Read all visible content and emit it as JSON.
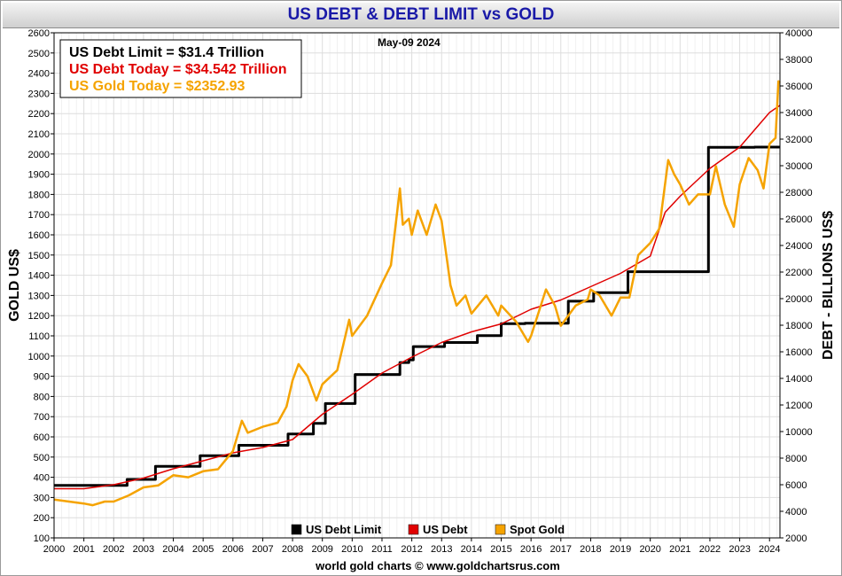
{
  "title": "US DEBT & DEBT LIMIT vs GOLD",
  "date_label": "May-09  2024",
  "info_box": [
    {
      "text": "US Debt Limit    = $31.4 Trillion",
      "color": "#000000"
    },
    {
      "text": "US Debt Today = $34.542 Trillion",
      "color": "#e00000"
    },
    {
      "text": "US Gold Today = $2352.93",
      "color": "#f5a300"
    }
  ],
  "footer": "world gold charts © www.goldchartsrus.com",
  "colors": {
    "debt_limit": "#000000",
    "us_debt": "#e00000",
    "spot_gold": "#f5a300",
    "grid": "#dddddd"
  },
  "chart_data": {
    "type": "line",
    "title": "US DEBT & DEBT LIMIT vs GOLD",
    "xlabel": "",
    "ylabel_left": "GOLD US$",
    "ylabel_right": "DEBT - BILLIONS US$",
    "xlim": [
      2000,
      2024.35
    ],
    "ylim_left": [
      100,
      2600
    ],
    "ylim_right": [
      2000,
      40000
    ],
    "x_ticks": [
      "2000",
      "2001",
      "2002",
      "2003",
      "2004",
      "2005",
      "2006",
      "2007",
      "2008",
      "2009",
      "2010",
      "2011",
      "2012",
      "2013",
      "2014",
      "2015",
      "2016",
      "2017",
      "2018",
      "2019",
      "2020",
      "2021",
      "2022",
      "2023",
      "2024"
    ],
    "y_left_ticks": [
      100,
      200,
      300,
      400,
      500,
      600,
      700,
      800,
      900,
      1000,
      1100,
      1200,
      1300,
      1400,
      1500,
      1600,
      1700,
      1800,
      1900,
      2000,
      2100,
      2200,
      2300,
      2400,
      2500,
      2600
    ],
    "y_right_ticks": [
      2000,
      4000,
      6000,
      8000,
      10000,
      12000,
      14000,
      16000,
      18000,
      20000,
      22000,
      24000,
      26000,
      28000,
      30000,
      32000,
      34000,
      36000,
      38000,
      40000
    ],
    "grid": true,
    "legend_position": "bottom-center",
    "series": [
      {
        "name": "US Debt Limit",
        "axis": "right",
        "color": "#000000",
        "step": true,
        "x": [
          2000.0,
          2002.45,
          2003.4,
          2004.9,
          2006.2,
          2007.85,
          2008.7,
          2009.1,
          2010.1,
          2011.6,
          2011.9,
          2012.05,
          2013.1,
          2014.2,
          2015.0,
          2015.8,
          2017.25,
          2018.1,
          2019.25,
          2021.95,
          2023.5,
          2024.35
        ],
        "y": [
          5950,
          6400,
          7384,
          8184,
          8965,
          9815,
          10615,
          12104,
          14294,
          15194,
          15394,
          16394,
          16699,
          17212,
          18113,
          18150,
          19808,
          20456,
          22030,
          31381,
          31400,
          31400
        ]
      },
      {
        "name": "US Debt",
        "axis": "right",
        "color": "#e00000",
        "x": [
          2000.0,
          2001.0,
          2002.0,
          2003.0,
          2004.0,
          2005.0,
          2006.0,
          2007.0,
          2008.0,
          2009.0,
          2010.0,
          2011.0,
          2012.0,
          2013.0,
          2014.0,
          2015.0,
          2016.0,
          2017.0,
          2018.0,
          2019.0,
          2020.0,
          2020.5,
          2021.0,
          2022.0,
          2023.0,
          2024.0,
          2024.35
        ],
        "y": [
          5700,
          5700,
          6000,
          6500,
          7200,
          7800,
          8400,
          8800,
          9400,
          11300,
          12800,
          14400,
          15600,
          16700,
          17500,
          18100,
          19200,
          19900,
          20900,
          21900,
          23200,
          26500,
          27700,
          29800,
          31400,
          34000,
          34542
        ]
      },
      {
        "name": "Spot Gold",
        "axis": "left",
        "color": "#f5a300",
        "x": [
          2000.0,
          2000.5,
          2001.0,
          2001.3,
          2001.7,
          2002.0,
          2002.5,
          2003.0,
          2003.5,
          2004.0,
          2004.5,
          2005.0,
          2005.5,
          2006.0,
          2006.3,
          2006.5,
          2007.0,
          2007.5,
          2007.8,
          2008.0,
          2008.2,
          2008.5,
          2008.8,
          2009.0,
          2009.5,
          2009.9,
          2010.0,
          2010.5,
          2011.0,
          2011.3,
          2011.6,
          2011.7,
          2011.9,
          2012.0,
          2012.2,
          2012.5,
          2012.8,
          2013.0,
          2013.3,
          2013.5,
          2013.8,
          2014.0,
          2014.5,
          2014.9,
          2015.0,
          2015.5,
          2015.9,
          2016.0,
          2016.5,
          2016.8,
          2017.0,
          2017.5,
          2017.9,
          2018.0,
          2018.3,
          2018.7,
          2019.0,
          2019.3,
          2019.6,
          2020.0,
          2020.3,
          2020.6,
          2020.8,
          2021.0,
          2021.3,
          2021.6,
          2022.0,
          2022.2,
          2022.5,
          2022.8,
          2023.0,
          2023.3,
          2023.6,
          2023.8,
          2024.0,
          2024.2,
          2024.3,
          2024.35
        ],
        "y": [
          290,
          280,
          270,
          262,
          280,
          280,
          310,
          350,
          360,
          410,
          400,
          430,
          440,
          530,
          680,
          620,
          650,
          670,
          750,
          880,
          960,
          900,
          780,
          860,
          930,
          1180,
          1100,
          1200,
          1360,
          1450,
          1830,
          1650,
          1680,
          1600,
          1720,
          1600,
          1750,
          1670,
          1350,
          1250,
          1300,
          1210,
          1300,
          1200,
          1250,
          1170,
          1070,
          1100,
          1330,
          1250,
          1150,
          1250,
          1280,
          1330,
          1300,
          1200,
          1290,
          1290,
          1500,
          1560,
          1630,
          1970,
          1900,
          1850,
          1750,
          1800,
          1800,
          1940,
          1750,
          1640,
          1850,
          1980,
          1920,
          1830,
          2050,
          2080,
          2360,
          2352.93
        ]
      }
    ]
  }
}
